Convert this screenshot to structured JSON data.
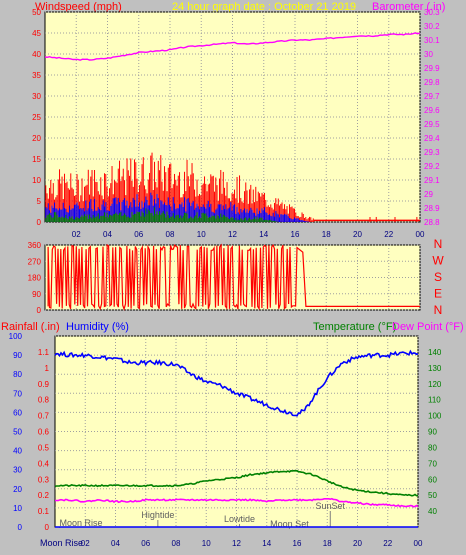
{
  "chart_data": [
    {
      "type": "line",
      "title": "24 hour graph date : October 21 2019",
      "ylabel_left": "Windspeed (mph)",
      "ylabel_right": "Barometer (.in)",
      "ylim_left": [
        0,
        50
      ],
      "ylim_right": [
        28.8,
        30.3
      ],
      "yticks_left": [
        "0",
        "5",
        "10",
        "15",
        "20",
        "25",
        "30",
        "35",
        "40",
        "45",
        "50"
      ],
      "yticks_right": [
        "28.8",
        "28.9",
        "29",
        "29.1",
        "29.2",
        "29.3",
        "29.4",
        "29.5",
        "29.6",
        "29.7",
        "29.8",
        "29.9",
        "30",
        "30.1",
        "30.2",
        "30.3"
      ],
      "xticks": [
        "02",
        "04",
        "06",
        "08",
        "10",
        "12",
        "14",
        "16",
        "18",
        "20",
        "22",
        "00"
      ],
      "xlim": [
        0,
        24
      ],
      "grid": true,
      "colors": {
        "gust": "#ff0000",
        "average": "#0000ff",
        "lull": "#008000",
        "barometer": "#ff00ff"
      },
      "series": [
        {
          "name": "Barometer",
          "color": "#ff00ff",
          "axis": "right",
          "x": [
            0,
            1,
            2,
            3,
            4,
            5,
            6,
            7,
            8,
            9,
            10,
            11,
            12,
            13,
            14,
            15,
            16,
            17,
            18,
            19,
            20,
            21,
            22,
            23,
            24
          ],
          "values": [
            29.98,
            29.97,
            29.96,
            29.96,
            29.97,
            29.99,
            30.01,
            30.02,
            30.03,
            30.05,
            30.06,
            30.07,
            30.08,
            30.07,
            30.08,
            30.09,
            30.1,
            30.1,
            30.11,
            30.12,
            30.13,
            30.13,
            30.14,
            30.14,
            30.15
          ]
        },
        {
          "name": "Gust",
          "color": "#ff0000",
          "axis": "left",
          "x": [
            0,
            1,
            2,
            3,
            4,
            5,
            6,
            7,
            8,
            9,
            10,
            11,
            12,
            13,
            14,
            15,
            16,
            17,
            18,
            19,
            20,
            21,
            22,
            23,
            24
          ],
          "values": [
            11,
            11,
            10,
            12,
            12,
            13,
            14,
            15,
            13,
            13,
            12,
            11,
            11,
            8,
            7,
            5,
            3,
            1,
            1,
            0.5,
            0.5,
            1,
            1,
            0.5,
            0.5
          ]
        },
        {
          "name": "Average",
          "color": "#0000ff",
          "axis": "left",
          "x": [
            0,
            1,
            2,
            3,
            4,
            5,
            6,
            7,
            8,
            9,
            10,
            11,
            12,
            13,
            14,
            15,
            16,
            17,
            18,
            19,
            20,
            21,
            22,
            23,
            24
          ],
          "values": [
            4,
            4,
            4,
            5,
            5,
            5,
            6,
            6,
            5,
            5,
            5,
            4,
            4,
            3,
            3,
            2,
            1,
            0,
            0,
            0,
            0,
            0,
            0,
            0,
            0
          ]
        },
        {
          "name": "Lull",
          "color": "#008000",
          "axis": "left",
          "x": [
            0,
            1,
            2,
            3,
            4,
            5,
            6,
            7,
            8,
            9,
            10,
            11,
            12,
            13,
            14,
            15,
            16,
            17,
            18,
            19,
            20,
            21,
            22,
            23,
            24
          ],
          "values": [
            2,
            2,
            1,
            2,
            2,
            2,
            3,
            3,
            2,
            2,
            2,
            2,
            1,
            1,
            1,
            0,
            0,
            0,
            0,
            0,
            0,
            0,
            0,
            0,
            0
          ]
        }
      ]
    },
    {
      "type": "line",
      "ylabel_right": [
        "N",
        "W",
        "S",
        "E",
        "N"
      ],
      "ylim": [
        0,
        360
      ],
      "yticks": [
        "0",
        "90",
        "180",
        "270",
        "360"
      ],
      "xlim": [
        0,
        24
      ],
      "grid": true,
      "series": [
        {
          "name": "Wind direction",
          "color": "#ff0000",
          "note_range": "rapid swings 0-360 between 00 and 16.5, then steady",
          "x": [
            0,
            16.5,
            17,
            24
          ],
          "values": [
            360,
            0,
            20,
            20
          ]
        }
      ]
    },
    {
      "type": "line",
      "ylabel_left_1": "Rainfall (.in)",
      "ylabel_left_2": "Humidity (%)",
      "ylabel_right_1": "Temperature (°F)",
      "ylabel_right_2": "Dew Point (°F)",
      "ylim_left": [
        0,
        1.2
      ],
      "ylim_humidity": [
        0,
        100
      ],
      "ylim_right": [
        30,
        150
      ],
      "yticks_left": [
        "0",
        "0.1",
        "0.2",
        "0.3",
        "0.4",
        "0.5",
        "0.6",
        "0.7",
        "0.8",
        "0.9",
        "1",
        "1.1"
      ],
      "yticks_humidity": [
        "0",
        "10",
        "20",
        "30",
        "40",
        "50",
        "60",
        "70",
        "80",
        "90",
        "100"
      ],
      "yticks_right": [
        "40",
        "50",
        "60",
        "70",
        "80",
        "90",
        "100",
        "110",
        "120",
        "130",
        "140"
      ],
      "xticks": [
        "02",
        "04",
        "06",
        "08",
        "10",
        "12",
        "14",
        "16",
        "18",
        "20",
        "22",
        "00"
      ],
      "xlim": [
        0,
        24
      ],
      "grid": true,
      "annotations": [
        {
          "label": "Moon Rise",
          "x": 0.3
        },
        {
          "label": "Hightide",
          "x": 6.8
        },
        {
          "label": "Lowtide",
          "x": 12.2
        },
        {
          "label": "Moon Set",
          "x": 15.5
        },
        {
          "label": "SunSet",
          "x": 18.2
        }
      ],
      "series": [
        {
          "name": "Humidity",
          "color": "#0000ff",
          "axis": "humidity",
          "x": [
            0,
            1,
            2,
            3,
            4,
            5,
            6,
            7,
            8,
            9,
            10,
            11,
            12,
            13,
            14,
            15,
            16,
            16.5,
            17,
            18,
            19,
            20,
            21,
            22,
            23,
            24
          ],
          "values": [
            91,
            90,
            90,
            89,
            88,
            86,
            86,
            86,
            85,
            80,
            76,
            74,
            70,
            67,
            64,
            61,
            59,
            61,
            67,
            78,
            86,
            89,
            90,
            90,
            91,
            91
          ]
        },
        {
          "name": "Temperature",
          "color": "#008000",
          "axis": "right",
          "x": [
            0,
            1,
            2,
            3,
            4,
            5,
            6,
            7,
            8,
            9,
            10,
            11,
            12,
            13,
            14,
            15,
            16,
            17,
            18,
            19,
            20,
            21,
            22,
            23,
            24
          ],
          "values": [
            56,
            56,
            56,
            56,
            56,
            56,
            56,
            56,
            56,
            57,
            59,
            60,
            61,
            63,
            64,
            65,
            65,
            63,
            59,
            55,
            53,
            52,
            51,
            50,
            50
          ]
        },
        {
          "name": "Dew Point",
          "color": "#ff00ff",
          "axis": "right",
          "x": [
            0,
            1,
            2,
            3,
            4,
            5,
            6,
            7,
            8,
            9,
            10,
            11,
            12,
            13,
            14,
            15,
            16,
            17,
            18,
            19,
            20,
            21,
            22,
            23,
            24
          ],
          "values": [
            47,
            47,
            46,
            47,
            46,
            46,
            47,
            47,
            47,
            47,
            47,
            47,
            47,
            47,
            46,
            47,
            47,
            47,
            48,
            46,
            45,
            44,
            44,
            43,
            43
          ]
        },
        {
          "name": "Rainfall",
          "color": "#0000ff",
          "axis": "left",
          "x": [
            0,
            24
          ],
          "values": [
            0,
            0
          ]
        }
      ]
    }
  ],
  "bottom_axis_label": "Moon Rise"
}
